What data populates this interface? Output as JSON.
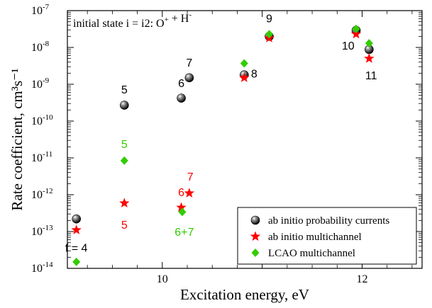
{
  "chart_data": {
    "type": "scatter",
    "xlabel": "Excitation energy, eV",
    "ylabel": "Rate coefficient, cm³s⁻¹",
    "xlim": [
      9.05,
      12.6
    ],
    "ylim_log10": [
      -14,
      -7
    ],
    "log_y": true,
    "x_ticks": [
      {
        "value": 10,
        "label": "10"
      },
      {
        "value": 12,
        "label": "12"
      }
    ],
    "y_ticks": [
      {
        "exp": -14,
        "label": "10",
        "sup": "-14"
      },
      {
        "exp": -13,
        "label": "10",
        "sup": "-13"
      },
      {
        "exp": -12,
        "label": "10",
        "sup": "-12"
      },
      {
        "exp": -11,
        "label": "10",
        "sup": "-11"
      },
      {
        "exp": -10,
        "label": "10",
        "sup": "-10"
      },
      {
        "exp": -9,
        "label": "10",
        "sup": "-9"
      },
      {
        "exp": -8,
        "label": "10",
        "sup": "-8"
      },
      {
        "exp": -7,
        "label": "10",
        "sup": "-7"
      }
    ],
    "annotation_parts": [
      {
        "text": "initial state i = i2: O",
        "sup": null
      },
      {
        "text": "",
        "sup": "+"
      },
      {
        "text": " + H",
        "sup": null
      },
      {
        "text": "",
        "sup": "-"
      }
    ],
    "legend_position": "bottom-right",
    "series": [
      {
        "name": "ab initio probability currents",
        "marker": "sphere",
        "color": "#000000",
        "points": [
          {
            "x": 9.14,
            "y": 2.2e-13
          },
          {
            "x": 9.62,
            "y": 2.7e-10
          },
          {
            "x": 10.19,
            "y": 4.2e-10
          },
          {
            "x": 10.27,
            "y": 1.5e-09
          },
          {
            "x": 10.82,
            "y": 1.8e-09
          },
          {
            "x": 11.07,
            "y": 2e-08
          },
          {
            "x": 11.94,
            "y": 2.9e-08
          },
          {
            "x": 12.07,
            "y": 8.8e-09
          }
        ]
      },
      {
        "name": "ab initio multichannel",
        "marker": "star",
        "color": "#ff0000",
        "points": [
          {
            "x": 9.14,
            "y": 1.1e-13
          },
          {
            "x": 9.62,
            "y": 5.9e-13
          },
          {
            "x": 10.19,
            "y": 4.5e-13
          },
          {
            "x": 10.27,
            "y": 1.1e-12
          },
          {
            "x": 10.82,
            "y": 1.5e-09
          },
          {
            "x": 11.07,
            "y": 1.8e-08
          },
          {
            "x": 11.94,
            "y": 2.3e-08
          },
          {
            "x": 12.07,
            "y": 5e-09
          }
        ]
      },
      {
        "name": "LCAO multichannel",
        "marker": "diamond",
        "color": "#33cc00",
        "points": [
          {
            "x": 9.14,
            "y": 1.5e-14
          },
          {
            "x": 9.62,
            "y": 8.4e-12
          },
          {
            "x": 10.2,
            "y": 3.4e-13
          },
          {
            "x": 10.82,
            "y": 3.7e-09
          },
          {
            "x": 11.07,
            "y": 2.3e-08
          },
          {
            "x": 11.94,
            "y": 3.2e-08
          },
          {
            "x": 12.07,
            "y": 1.3e-08
          }
        ]
      }
    ],
    "point_labels": [
      {
        "text": "f = 4",
        "color": "#000000",
        "x": 9.14,
        "y": 3.5e-14
      },
      {
        "text": "5",
        "color": "#000000",
        "x": 9.62,
        "y": 7e-10
      },
      {
        "text": "6",
        "color": "#000000",
        "x": 10.19,
        "y": 1.05e-09
      },
      {
        "text": "7",
        "color": "#000000",
        "x": 10.27,
        "y": 3.8e-09
      },
      {
        "text": "8",
        "color": "#000000",
        "x": 10.92,
        "y": 1.9e-09
      },
      {
        "text": "9",
        "color": "#000000",
        "x": 11.07,
        "y": 6e-08
      },
      {
        "text": "10",
        "color": "#000000",
        "x": 11.86,
        "y": 1.1e-08
      },
      {
        "text": "11",
        "color": "#000000",
        "x": 12.09,
        "y": 1.7e-09
      },
      {
        "text": "5",
        "color": "#33cc00",
        "x": 9.62,
        "y": 2.3e-11
      },
      {
        "text": "5",
        "color": "#ff0000",
        "x": 9.62,
        "y": 1.5e-13
      },
      {
        "text": "6",
        "color": "#ff0000",
        "x": 10.19,
        "y": 1.15e-12
      },
      {
        "text": "7",
        "color": "#ff0000",
        "x": 10.28,
        "y": 3e-12
      },
      {
        "text": "6+7",
        "color": "#33cc00",
        "x": 10.22,
        "y": 9.5e-14
      }
    ]
  }
}
